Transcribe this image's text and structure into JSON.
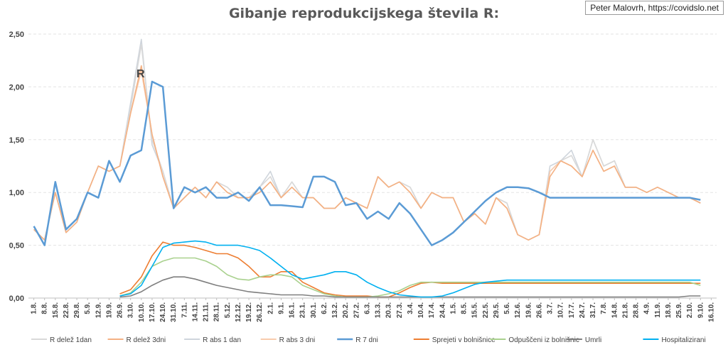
{
  "title": "Gibanje reprodukcijskega števila R:",
  "credit": "Peter Malovrh, https://covidslo.net",
  "chart_data": {
    "type": "line",
    "title": "Gibanje reprodukcijskega števila R:",
    "annotation": "R",
    "ylim": [
      0,
      2.5
    ],
    "y_ticks": [
      "0,00",
      "0,50",
      "1,00",
      "1,50",
      "2,00",
      "2,50"
    ],
    "grid": true,
    "legend_position": "bottom",
    "categories": [
      "1.8.",
      "8.8.",
      "15.8.",
      "22.8.",
      "29.8.",
      "5.9.",
      "12.9.",
      "19.9.",
      "26.9.",
      "3.10.",
      "10.10.",
      "17.10.",
      "24.10.",
      "31.10.",
      "7.11.",
      "14.11.",
      "21.11.",
      "28.11.",
      "5.12.",
      "12.12.",
      "19.12.",
      "26.12.",
      "2.1.",
      "9.1.",
      "16.1.",
      "23.1.",
      "30.1.",
      "6.2.",
      "13.2.",
      "20.2.",
      "27.2.",
      "6.3.",
      "13.3.",
      "20.3.",
      "27.3.",
      "3.4.",
      "10.4.",
      "17.4.",
      "24.4.",
      "1.5.",
      "8.5.",
      "15.5.",
      "22.5.",
      "29.5.",
      "5.6.",
      "12.6.",
      "19.6.",
      "26.6.",
      "3.7.",
      "10.7.",
      "17.7.",
      "24.7.",
      "31.7.",
      "7.8.",
      "14.8.",
      "21.8.",
      "28.8.",
      "4.9.",
      "11.9.",
      "18.9.",
      "25.9.",
      "2.10.",
      "9.10.",
      "16.10."
    ],
    "series": [
      {
        "name": "R delež 1dan",
        "color": "#d9d9d9",
        "values": [
          0.65,
          0.55,
          1.0,
          0.62,
          0.72,
          1.0,
          1.25,
          1.2,
          1.25,
          1.8,
          2.4,
          1.5,
          1.2,
          0.85,
          0.95,
          1.05,
          0.95,
          1.1,
          1.05,
          0.95,
          0.95,
          1.05,
          1.15,
          0.95,
          1.1,
          0.95,
          0.95,
          0.85,
          0.85,
          0.95,
          0.9,
          0.85,
          1.15,
          1.05,
          1.1,
          1.05,
          0.85,
          1.0,
          0.95,
          0.95,
          0.72,
          0.8,
          0.7,
          0.95,
          0.9,
          0.6,
          0.55,
          0.6,
          1.2,
          1.3,
          1.35,
          1.15,
          1.5,
          1.25,
          1.3,
          1.05,
          1.05,
          1.0,
          1.05,
          1.0,
          0.95,
          0.95,
          0.9,
          null
        ]
      },
      {
        "name": "R delež 3dni",
        "color": "#f4b183",
        "values": [
          0.65,
          0.55,
          1.0,
          0.62,
          0.72,
          1.0,
          1.25,
          1.2,
          1.25,
          1.75,
          2.2,
          1.55,
          1.15,
          0.85,
          0.95,
          1.05,
          0.95,
          1.1,
          1.0,
          0.95,
          0.95,
          1.0,
          1.1,
          0.95,
          1.05,
          0.95,
          0.95,
          0.85,
          0.85,
          0.95,
          0.9,
          0.85,
          1.15,
          1.05,
          1.1,
          1.0,
          0.85,
          1.0,
          0.95,
          0.95,
          0.72,
          0.8,
          0.7,
          0.95,
          0.85,
          0.6,
          0.55,
          0.6,
          1.15,
          1.3,
          1.25,
          1.15,
          1.4,
          1.2,
          1.25,
          1.05,
          1.05,
          1.0,
          1.05,
          1.0,
          0.95,
          0.95,
          0.9,
          null
        ]
      },
      {
        "name": "R abs 1 dan",
        "color": "#cfd5dc",
        "values": [
          0.65,
          0.55,
          1.0,
          0.62,
          0.72,
          1.0,
          1.25,
          1.2,
          1.25,
          1.85,
          2.45,
          1.45,
          1.2,
          0.85,
          0.95,
          1.05,
          0.95,
          1.1,
          1.05,
          0.95,
          0.95,
          1.05,
          1.2,
          0.95,
          1.1,
          0.95,
          0.95,
          0.85,
          0.85,
          0.95,
          0.9,
          0.85,
          1.15,
          1.05,
          1.1,
          1.05,
          0.85,
          1.0,
          0.95,
          0.95,
          0.72,
          0.8,
          0.7,
          0.95,
          0.9,
          0.6,
          0.55,
          0.6,
          1.25,
          1.3,
          1.4,
          1.15,
          1.5,
          1.25,
          1.3,
          1.05,
          1.05,
          1.0,
          1.05,
          1.0,
          0.95,
          0.95,
          0.9,
          null
        ]
      },
      {
        "name": "R abs 3 dni",
        "color": "#f8cbad",
        "values": [
          0.65,
          0.55,
          1.0,
          0.62,
          0.72,
          1.0,
          1.25,
          1.2,
          1.25,
          1.75,
          2.15,
          1.55,
          1.15,
          0.85,
          0.95,
          1.05,
          0.95,
          1.1,
          1.0,
          0.95,
          0.95,
          1.0,
          1.1,
          0.95,
          1.05,
          0.95,
          0.95,
          0.85,
          0.85,
          0.95,
          0.9,
          0.85,
          1.15,
          1.05,
          1.1,
          1.0,
          0.85,
          1.0,
          0.95,
          0.95,
          0.72,
          0.8,
          0.7,
          0.95,
          0.85,
          0.6,
          0.55,
          0.6,
          1.2,
          1.3,
          1.25,
          1.15,
          1.4,
          1.2,
          1.25,
          1.05,
          1.05,
          1.0,
          1.05,
          1.0,
          0.95,
          0.95,
          0.9,
          null
        ]
      },
      {
        "name": "R 7 dni",
        "color": "#5b9bd5",
        "values": [
          0.68,
          0.5,
          1.1,
          0.65,
          0.75,
          1.0,
          0.95,
          1.3,
          1.1,
          1.35,
          1.4,
          2.05,
          2.0,
          0.85,
          1.05,
          1.0,
          1.05,
          0.95,
          0.95,
          1.0,
          0.92,
          1.05,
          0.88,
          0.88,
          0.87,
          0.86,
          1.15,
          1.15,
          1.1,
          0.88,
          0.9,
          0.75,
          0.82,
          0.75,
          0.9,
          0.8,
          0.65,
          0.5,
          0.55,
          0.62,
          0.72,
          0.82,
          0.92,
          1.0,
          1.05,
          1.05,
          1.04,
          1.0,
          0.95,
          0.95,
          0.95,
          0.95,
          0.95,
          0.95,
          0.95,
          0.95,
          0.95,
          0.95,
          0.95,
          0.95,
          0.95,
          0.95,
          0.93,
          null
        ]
      },
      {
        "name": "Sprejeti v bolnišnice",
        "color": "#ed7d31",
        "values": [
          null,
          null,
          null,
          null,
          null,
          null,
          null,
          null,
          0.04,
          0.08,
          0.2,
          0.4,
          0.53,
          0.5,
          0.5,
          0.48,
          0.45,
          0.42,
          0.42,
          0.38,
          0.3,
          0.2,
          0.2,
          0.25,
          0.25,
          0.15,
          0.1,
          0.05,
          0.03,
          0.02,
          0.02,
          0.02,
          0.01,
          0.01,
          0.05,
          0.1,
          0.14,
          0.15,
          0.14,
          0.14,
          0.14,
          0.14,
          0.14,
          0.14,
          0.14,
          0.14,
          0.14,
          0.14,
          0.14,
          0.14,
          0.14,
          0.14,
          0.14,
          0.14,
          0.14,
          0.14,
          0.14,
          0.14,
          0.14,
          0.14,
          0.14,
          0.14,
          0.14,
          null
        ]
      },
      {
        "name": "Odpuščeni iz bolnišnic",
        "color": "#a9d18e",
        "values": [
          null,
          null,
          null,
          null,
          null,
          null,
          null,
          null,
          0.02,
          0.05,
          0.15,
          0.3,
          0.35,
          0.38,
          0.38,
          0.38,
          0.35,
          0.3,
          0.22,
          0.18,
          0.17,
          0.2,
          0.22,
          0.22,
          0.2,
          0.12,
          0.08,
          0.04,
          0.02,
          0.01,
          0.01,
          0.01,
          0.02,
          0.04,
          0.07,
          0.12,
          0.15,
          0.15,
          0.15,
          0.15,
          0.15,
          0.15,
          0.15,
          0.15,
          0.15,
          0.15,
          0.15,
          0.15,
          0.15,
          0.15,
          0.15,
          0.15,
          0.15,
          0.15,
          0.15,
          0.15,
          0.15,
          0.15,
          0.15,
          0.15,
          0.15,
          0.15,
          0.12,
          null
        ]
      },
      {
        "name": "Umrli",
        "color": "#7f7f7f",
        "values": [
          null,
          null,
          null,
          null,
          null,
          null,
          null,
          null,
          0.01,
          0.02,
          0.06,
          0.12,
          0.17,
          0.2,
          0.2,
          0.18,
          0.15,
          0.12,
          0.1,
          0.08,
          0.06,
          0.05,
          0.04,
          0.03,
          0.03,
          0.03,
          0.02,
          0.02,
          0.01,
          0.01,
          0.01,
          0.01,
          0.01,
          0.01,
          0.01,
          0.01,
          0.01,
          0.01,
          0.01,
          0.01,
          0.01,
          0.01,
          0.01,
          0.01,
          0.01,
          0.01,
          0.01,
          0.01,
          0.01,
          0.01,
          0.01,
          0.01,
          0.01,
          0.01,
          0.01,
          0.01,
          0.01,
          0.01,
          0.01,
          0.01,
          0.01,
          0.02,
          0.02,
          null
        ]
      },
      {
        "name": "Hospitalizirani",
        "color": "#00b0f0",
        "values": [
          null,
          null,
          null,
          null,
          null,
          null,
          null,
          null,
          0.02,
          0.04,
          0.12,
          0.3,
          0.48,
          0.52,
          0.53,
          0.54,
          0.53,
          0.5,
          0.5,
          0.5,
          0.48,
          0.45,
          0.38,
          0.3,
          0.22,
          0.18,
          0.2,
          0.22,
          0.25,
          0.25,
          0.22,
          0.15,
          0.1,
          0.06,
          0.03,
          0.02,
          0.01,
          0.01,
          0.02,
          0.05,
          0.09,
          0.13,
          0.15,
          0.16,
          0.17,
          0.17,
          0.17,
          0.17,
          0.17,
          0.17,
          0.17,
          0.17,
          0.17,
          0.17,
          0.17,
          0.17,
          0.17,
          0.17,
          0.17,
          0.17,
          0.17,
          0.17,
          0.17,
          null
        ]
      }
    ]
  }
}
